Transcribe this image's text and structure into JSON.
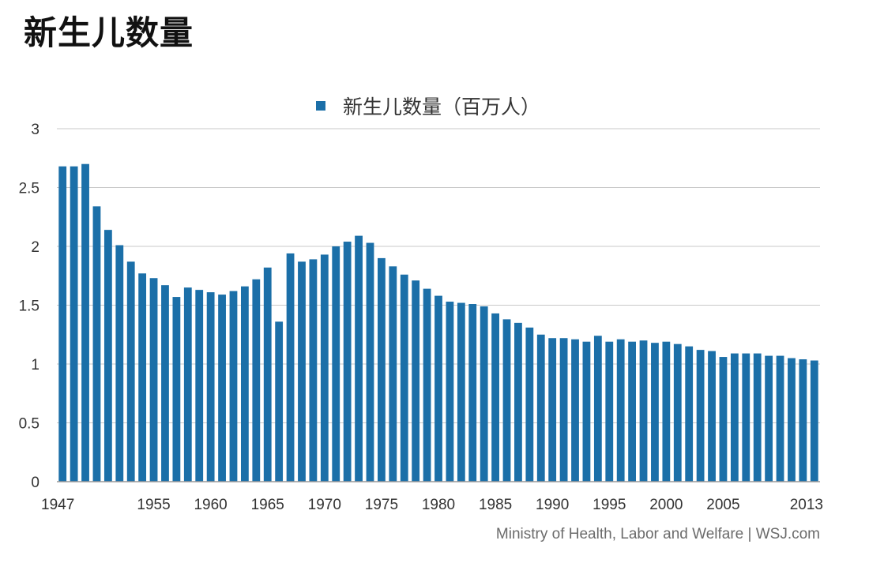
{
  "page": {
    "title": "新生儿数量"
  },
  "source": "Ministry of Health, Labor and Welfare  |  WSJ.com",
  "chart_data": {
    "type": "bar",
    "title": "",
    "xlabel": "",
    "ylabel": "",
    "legend": "新生儿数量（百万人）",
    "legend_position": "top-center",
    "bar_color": "#1b6fa8",
    "grid": true,
    "ylim": [
      0,
      3
    ],
    "yticks": [
      "0",
      "0.5",
      "1",
      "1.5",
      "2",
      "2.5",
      "3"
    ],
    "xtick_labels": [
      "1947",
      "1955",
      "1960",
      "1965",
      "1970",
      "1975",
      "1980",
      "1985",
      "1990",
      "1995",
      "2000",
      "2005",
      "2013"
    ],
    "categories": [
      1947,
      1948,
      1949,
      1950,
      1951,
      1952,
      1953,
      1954,
      1955,
      1956,
      1957,
      1958,
      1959,
      1960,
      1961,
      1962,
      1963,
      1964,
      1965,
      1966,
      1967,
      1968,
      1969,
      1970,
      1971,
      1972,
      1973,
      1974,
      1975,
      1976,
      1977,
      1978,
      1979,
      1980,
      1981,
      1982,
      1983,
      1984,
      1985,
      1986,
      1987,
      1988,
      1989,
      1990,
      1991,
      1992,
      1993,
      1994,
      1995,
      1996,
      1997,
      1998,
      1999,
      2000,
      2001,
      2002,
      2003,
      2004,
      2005,
      2006,
      2007,
      2008,
      2009,
      2010,
      2011,
      2012,
      2013
    ],
    "series": [
      {
        "name": "新生儿数量（百万人）",
        "values": [
          2.68,
          2.68,
          2.7,
          2.34,
          2.14,
          2.01,
          1.87,
          1.77,
          1.73,
          1.67,
          1.57,
          1.65,
          1.63,
          1.61,
          1.59,
          1.62,
          1.66,
          1.72,
          1.82,
          1.36,
          1.94,
          1.87,
          1.89,
          1.93,
          2.0,
          2.04,
          2.09,
          2.03,
          1.9,
          1.83,
          1.76,
          1.71,
          1.64,
          1.58,
          1.53,
          1.52,
          1.51,
          1.49,
          1.43,
          1.38,
          1.35,
          1.31,
          1.25,
          1.22,
          1.22,
          1.21,
          1.19,
          1.24,
          1.19,
          1.21,
          1.19,
          1.2,
          1.18,
          1.19,
          1.17,
          1.15,
          1.12,
          1.11,
          1.06,
          1.09,
          1.09,
          1.09,
          1.07,
          1.07,
          1.05,
          1.04,
          1.03
        ]
      }
    ]
  }
}
